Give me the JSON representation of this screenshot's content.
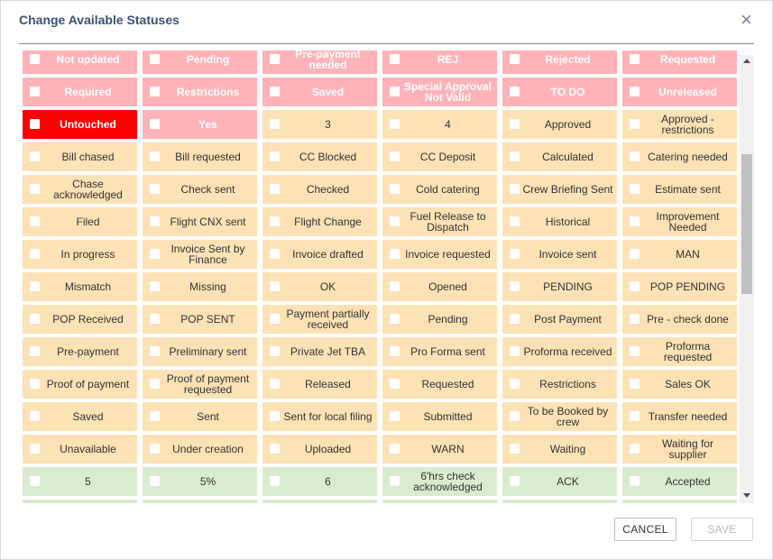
{
  "dialog": {
    "title": "Change Available Statuses",
    "close": "×",
    "rows": [
      {
        "color": "#ffb3b8",
        "text_color": "#ffffff",
        "cells": [
          {
            "label": "Not updated"
          },
          {
            "label": "Pending"
          },
          {
            "label": "Pre-payment needed"
          },
          {
            "label": "REJ"
          },
          {
            "label": "Rejected"
          },
          {
            "label": "Requested"
          }
        ]
      },
      {
        "color": "#ffb3b8",
        "text_color": "#ffffff",
        "cells": [
          {
            "label": "Required"
          },
          {
            "label": "Restrictions"
          },
          {
            "label": "Saved"
          },
          {
            "label": "Special Approval Not Valid"
          },
          {
            "label": "TO DO"
          },
          {
            "label": "Unreleased"
          }
        ]
      },
      {
        "color": "#fde2b6",
        "text_color": "#333333",
        "cells": [
          {
            "label": "Untouched",
            "color": "#ff0000",
            "text_color": "#ffffff"
          },
          {
            "label": "Yes",
            "color": "#ffb3b8",
            "text_color": "#ffffff"
          },
          {
            "label": "3"
          },
          {
            "label": "4"
          },
          {
            "label": "Approved"
          },
          {
            "label": "Approved - restrictions"
          }
        ]
      },
      {
        "color": "#fde2b6",
        "text_color": "#333333",
        "cells": [
          {
            "label": "Bill chased"
          },
          {
            "label": "Bill requested"
          },
          {
            "label": "CC Blocked"
          },
          {
            "label": "CC Deposit"
          },
          {
            "label": "Calculated"
          },
          {
            "label": "Catering needed"
          }
        ]
      },
      {
        "color": "#fde2b6",
        "text_color": "#333333",
        "cells": [
          {
            "label": "Chase acknowledged"
          },
          {
            "label": "Check sent"
          },
          {
            "label": "Checked"
          },
          {
            "label": "Cold catering"
          },
          {
            "label": "Crew Briefing Sent"
          },
          {
            "label": "Estimate sent"
          }
        ]
      },
      {
        "color": "#fde2b6",
        "text_color": "#333333",
        "cells": [
          {
            "label": "Filed"
          },
          {
            "label": "Flight CNX sent"
          },
          {
            "label": "Flight Change"
          },
          {
            "label": "Fuel Release to Dispatch"
          },
          {
            "label": "Historical"
          },
          {
            "label": "Improvement Needed"
          }
        ]
      },
      {
        "color": "#fde2b6",
        "text_color": "#333333",
        "cells": [
          {
            "label": "In progress"
          },
          {
            "label": "Invoice Sent by Finance"
          },
          {
            "label": "Invoice drafted"
          },
          {
            "label": "Invoice requested"
          },
          {
            "label": "Invoice sent"
          },
          {
            "label": "MAN"
          }
        ]
      },
      {
        "color": "#fde2b6",
        "text_color": "#333333",
        "cells": [
          {
            "label": "Mismatch"
          },
          {
            "label": "Missing"
          },
          {
            "label": "OK"
          },
          {
            "label": "Opened"
          },
          {
            "label": "PENDING"
          },
          {
            "label": "POP PENDING"
          }
        ]
      },
      {
        "color": "#fde2b6",
        "text_color": "#333333",
        "cells": [
          {
            "label": "POP Received"
          },
          {
            "label": "POP SENT"
          },
          {
            "label": "Payment partially received"
          },
          {
            "label": "Pending"
          },
          {
            "label": "Post Payment"
          },
          {
            "label": "Pre - check done"
          }
        ]
      },
      {
        "color": "#fde2b6",
        "text_color": "#333333",
        "cells": [
          {
            "label": "Pre-payment"
          },
          {
            "label": "Preliminary sent"
          },
          {
            "label": "Private Jet TBA"
          },
          {
            "label": "Pro Forma sent"
          },
          {
            "label": "Proforma received"
          },
          {
            "label": "Proforma requested"
          }
        ]
      },
      {
        "color": "#fde2b6",
        "text_color": "#333333",
        "cells": [
          {
            "label": "Proof of payment"
          },
          {
            "label": "Proof of payment requested"
          },
          {
            "label": "Released"
          },
          {
            "label": "Requested"
          },
          {
            "label": "Restrictions"
          },
          {
            "label": "Sales OK"
          }
        ]
      },
      {
        "color": "#fde2b6",
        "text_color": "#333333",
        "cells": [
          {
            "label": "Saved"
          },
          {
            "label": "Sent"
          },
          {
            "label": "Sent for local filing"
          },
          {
            "label": "Submitted"
          },
          {
            "label": "To be Booked by crew"
          },
          {
            "label": "Transfer needed"
          }
        ]
      },
      {
        "color": "#fde2b6",
        "text_color": "#333333",
        "cells": [
          {
            "label": "Unavailable"
          },
          {
            "label": "Under creation"
          },
          {
            "label": "Uploaded"
          },
          {
            "label": "WARN"
          },
          {
            "label": "Waiting"
          },
          {
            "label": "Waiting for supplier"
          }
        ]
      },
      {
        "color": "#d9ecd0",
        "text_color": "#333333",
        "cells": [
          {
            "label": "5"
          },
          {
            "label": "5%"
          },
          {
            "label": "6"
          },
          {
            "label": "6'hrs check acknowledged"
          },
          {
            "label": "ACK"
          },
          {
            "label": "Accepted"
          }
        ]
      }
    ],
    "buttons": {
      "cancel": "CANCEL",
      "save": "SAVE"
    }
  }
}
